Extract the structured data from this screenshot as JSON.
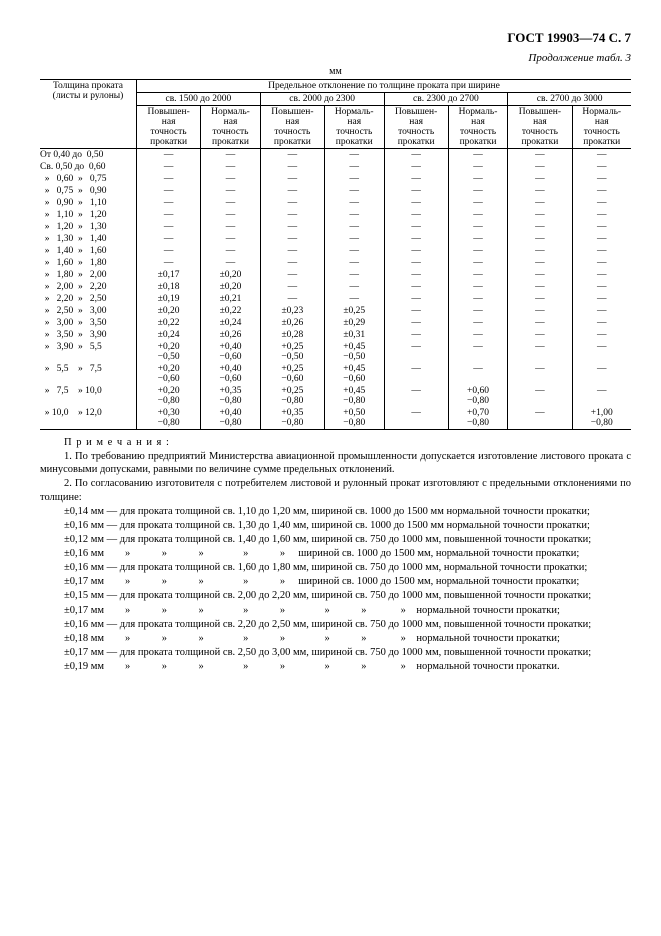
{
  "header": "ГОСТ 19903—74 С. 7",
  "caption": "Продолжение табл. 3",
  "unit": "мм",
  "table": {
    "colhead1": "Толщина проката (листы и рулоны)",
    "tophead": "Предельное отклонение по толщине проката при ширине",
    "widths": [
      "св. 1500 до 2000",
      "св. 2000 до 2300",
      "св. 2300 до 2700",
      "св. 2700 до 3000"
    ],
    "sub_high": "Повышен-\nная\nточность\nпрокатки",
    "sub_norm": "Нормаль-\nная\nточность\nпрокатки",
    "rows": [
      {
        "t": "От 0,40 до  0,50",
        "v": [
          "—",
          "—",
          "—",
          "—",
          "—",
          "—",
          "—",
          "—"
        ]
      },
      {
        "t": "Св. 0,50 до  0,60",
        "v": [
          "—",
          "—",
          "—",
          "—",
          "—",
          "—",
          "—",
          "—"
        ]
      },
      {
        "t": "  »   0,60  »   0,75",
        "v": [
          "—",
          "—",
          "—",
          "—",
          "—",
          "—",
          "—",
          "—"
        ]
      },
      {
        "t": "  »   0,75  »   0,90",
        "v": [
          "—",
          "—",
          "—",
          "—",
          "—",
          "—",
          "—",
          "—"
        ]
      },
      {
        "t": "  »   0,90  »   1,10",
        "v": [
          "—",
          "—",
          "—",
          "—",
          "—",
          "—",
          "—",
          "—"
        ]
      },
      {
        "t": "  »   1,10  »   1,20",
        "v": [
          "—",
          "—",
          "—",
          "—",
          "—",
          "—",
          "—",
          "—"
        ]
      },
      {
        "t": "  »   1,20  »   1,30",
        "v": [
          "—",
          "—",
          "—",
          "—",
          "—",
          "—",
          "—",
          "—"
        ]
      },
      {
        "t": "  »   1,30  »   1,40",
        "v": [
          "—",
          "—",
          "—",
          "—",
          "—",
          "—",
          "—",
          "—"
        ]
      },
      {
        "t": "  »   1,40  »   1,60",
        "v": [
          "—",
          "—",
          "—",
          "—",
          "—",
          "—",
          "—",
          "—"
        ]
      },
      {
        "t": "  »   1,60  »   1,80",
        "v": [
          "—",
          "—",
          "—",
          "—",
          "—",
          "—",
          "—",
          "—"
        ]
      },
      {
        "t": "  »   1,80  »   2,00",
        "v": [
          "±0,17",
          "±0,20",
          "—",
          "—",
          "—",
          "—",
          "—",
          "—"
        ]
      },
      {
        "t": "  »   2,00  »   2,20",
        "v": [
          "±0,18",
          "±0,20",
          "—",
          "—",
          "—",
          "—",
          "—",
          "—"
        ]
      },
      {
        "t": "  »   2,20  »   2,50",
        "v": [
          "±0,19",
          "±0,21",
          "—",
          "—",
          "—",
          "—",
          "—",
          "—"
        ]
      },
      {
        "t": "  »   2,50  »   3,00",
        "v": [
          "±0,20",
          "±0,22",
          "±0,23",
          "±0,25",
          "—",
          "—",
          "—",
          "—"
        ]
      },
      {
        "t": "  »   3,00  »   3,50",
        "v": [
          "±0,22",
          "±0,24",
          "±0,26",
          "±0,29",
          "—",
          "—",
          "—",
          "—"
        ]
      },
      {
        "t": "  »   3,50  »   3,90",
        "v": [
          "±0,24",
          "±0,26",
          "±0,28",
          "±0,31",
          "—",
          "—",
          "—",
          "—"
        ]
      },
      {
        "t": "  »   3,90  »   5,5",
        "v": [
          "+0,20\n−0,50",
          "+0,40\n−0,60",
          "+0,25\n−0,50",
          "+0,45\n−0,50",
          "—",
          "—",
          "—",
          "—"
        ]
      },
      {
        "t": "  »   5,5    »   7,5",
        "v": [
          "+0,20\n−0,60",
          "+0,40\n−0,60",
          "+0,25\n−0,60",
          "+0,45\n−0,60",
          "—",
          "—",
          "—",
          "—"
        ]
      },
      {
        "t": "  »   7,5    » 10,0",
        "v": [
          "+0,20\n−0,80",
          "+0,35\n−0,80",
          "+0,25\n−0,80",
          "+0,45\n−0,80",
          "—",
          "+0,60\n−0,80",
          "—",
          "—"
        ]
      },
      {
        "t": "  » 10,0    » 12,0",
        "v": [
          "+0,30\n−0,80",
          "+0,40\n−0,80",
          "+0,35\n−0,80",
          "+0,50\n−0,80",
          "—",
          "+0,70\n−0,80",
          "—",
          "+1,00\n−0,80"
        ]
      }
    ]
  },
  "notes": {
    "title": "П р и м е ч а н и я :",
    "n1": "1. По требованию предприятий Министерства авиационной промышленности допускается изготовление листового проката с минусовыми допусками, равными по величине сумме предельных отклонений.",
    "n2": "2. По согласованию изготовителя с потребителем листовой и рулонный прокат изготовляют с предельными отклонениями по толщине:",
    "lines": [
      "±0,14 мм — для проката толщиной св. 1,10 до 1,20 мм, шириной св. 1000 до 1500 мм нормальной точности прокатки;",
      "±0,16 мм — для проката толщиной св. 1,30 до 1,40 мм, шириной св. 1000 до 1500 мм нормальной точности прокатки;",
      "±0,12 мм — для проката толщиной св. 1,40 до 1,60 мм, шириной св. 750 до 1000 мм, повышенной точности прокатки;",
      "±0,16 мм        »            »            »               »            »     шириной св. 1000 до 1500 мм, нормальной точности прокатки;",
      "±0,16 мм — для проката толщиной св. 1,60 до 1,80 мм, шириной св. 750 до 1000 мм, нормальной точности прокатки;",
      "±0,17 мм        »            »            »               »            »     шириной св. 1000 до 1500 мм, нормальной точности прокатки;",
      "±0,15 мм — для проката толщиной св. 2,00 до 2,20 мм, шириной св. 750 до 1000 мм, повышенной точности прокатки;",
      "±0,17 мм        »            »            »               »            »               »            »             »    нормальной точности прокатки;",
      "±0,16 мм — для проката толщиной св. 2,20 до 2,50 мм, шириной св. 750 до 1000 мм, повышенной точности прокатки;",
      "±0,18 мм        »            »            »               »            »               »            »             »    нормальной точности прокатки;",
      "±0,17 мм — для проката толщиной св. 2,50 до 3,00 мм, шириной св. 750 до 1000 мм, повышенной точности прокатки;",
      "±0,19 мм        »            »            »               »            »               »            »             »    нормальной точности прокатки."
    ]
  }
}
